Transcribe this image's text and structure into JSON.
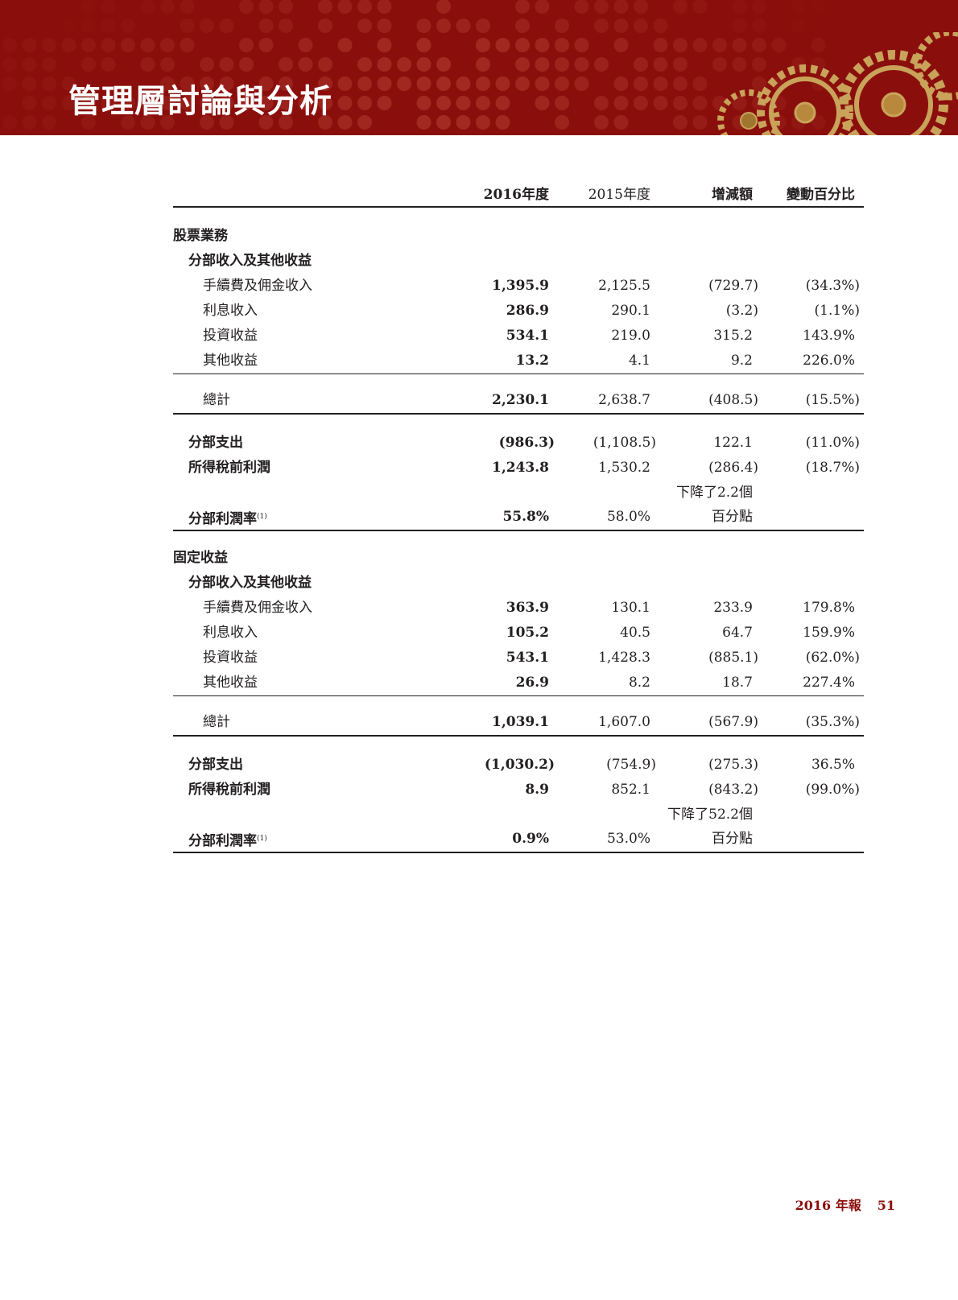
{
  "header": {
    "title": "管理層討論與分析",
    "brand_color": "#8a0f0c"
  },
  "table": {
    "columns": [
      "2016年度",
      "2015年度",
      "增減額",
      "變動百分比"
    ],
    "sections": [
      {
        "title": "股票業務",
        "subtitle": "分部收入及其他收益",
        "items": [
          {
            "label": "手續費及佣金收入",
            "values": [
              "1,395.9",
              "2,125.5",
              "(729.7)",
              "(34.3%)"
            ]
          },
          {
            "label": "利息收入",
            "values": [
              "286.9",
              "290.1",
              "(3.2)",
              "(1.1%)"
            ]
          },
          {
            "label": "投資收益",
            "values": [
              "534.1",
              "219.0",
              "315.2",
              "143.9%"
            ]
          },
          {
            "label": "其他收益",
            "values": [
              "13.2",
              "4.1",
              "9.2",
              "226.0%"
            ]
          }
        ],
        "total": {
          "label": "總計",
          "values": [
            "2,230.1",
            "2,638.7",
            "(408.5)",
            "(15.5%)"
          ]
        },
        "expense": {
          "label": "分部支出",
          "values": [
            "(986.3)",
            "(1,108.5)",
            "122.1",
            "(11.0%)"
          ]
        },
        "profit": {
          "label": "所得稅前利潤",
          "values": [
            "1,243.8",
            "1,530.2",
            "(286.4)",
            "(18.7%)"
          ]
        },
        "margin": {
          "label": "分部利潤率",
          "note": "(1)",
          "values": [
            "55.8%",
            "58.0%"
          ],
          "change_line1": "下降了2.2個",
          "change_line2": "百分點"
        }
      },
      {
        "title": "固定收益",
        "subtitle": "分部收入及其他收益",
        "items": [
          {
            "label": "手續費及佣金收入",
            "values": [
              "363.9",
              "130.1",
              "233.9",
              "179.8%"
            ]
          },
          {
            "label": "利息收入",
            "values": [
              "105.2",
              "40.5",
              "64.7",
              "159.9%"
            ]
          },
          {
            "label": "投資收益",
            "values": [
              "543.1",
              "1,428.3",
              "(885.1)",
              "(62.0%)"
            ]
          },
          {
            "label": "其他收益",
            "values": [
              "26.9",
              "8.2",
              "18.7",
              "227.4%"
            ]
          }
        ],
        "total": {
          "label": "總計",
          "values": [
            "1,039.1",
            "1,607.0",
            "(567.9)",
            "(35.3%)"
          ]
        },
        "expense": {
          "label": "分部支出",
          "values": [
            "(1,030.2)",
            "(754.9)",
            "(275.3)",
            "36.5%"
          ]
        },
        "profit": {
          "label": "所得稅前利潤",
          "values": [
            "8.9",
            "852.1",
            "(843.2)",
            "(99.0%)"
          ]
        },
        "margin": {
          "label": "分部利潤率",
          "note": "(1)",
          "values": [
            "0.9%",
            "53.0%"
          ],
          "change_line1": "下降了52.2個",
          "change_line2": "百分點"
        }
      }
    ]
  },
  "footer": {
    "report": "2016 年報",
    "page": "51"
  }
}
